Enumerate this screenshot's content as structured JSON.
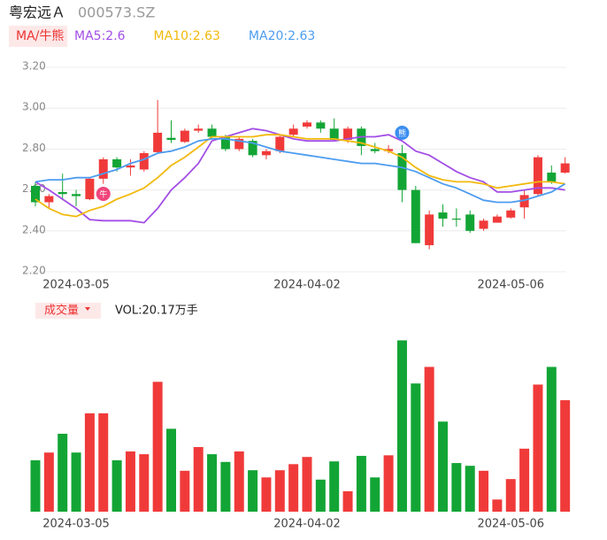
{
  "header": {
    "name": "粤宏远Ａ",
    "code": "000573.SZ",
    "ma_tag": "MA/牛熊"
  },
  "chart_data": [
    {
      "type": "candlestick",
      "categories": [
        null,
        null,
        null,
        "2024-03-05",
        null,
        null,
        null,
        null,
        null,
        null,
        null,
        null,
        null,
        null,
        null,
        null,
        null,
        null,
        null,
        null,
        "2024-04-02",
        null,
        null,
        null,
        null,
        null,
        null,
        null,
        null,
        null,
        null,
        null,
        null,
        null,
        null,
        "2024-05-06",
        null,
        null,
        null,
        null
      ],
      "open": [
        2.62,
        2.54,
        2.59,
        2.58,
        2.555,
        2.655,
        2.75,
        2.71,
        2.7,
        2.785,
        2.855,
        2.835,
        2.89,
        2.9,
        2.86,
        2.8,
        2.84,
        2.77,
        2.79,
        2.87,
        2.91,
        2.93,
        2.9,
        2.845,
        2.9,
        2.8,
        2.79,
        2.78,
        2.6,
        2.33,
        2.49,
        2.46,
        2.48,
        2.41,
        2.44,
        2.465,
        2.515,
        2.58,
        2.685,
        2.685
      ],
      "close": [
        2.54,
        2.57,
        2.58,
        2.57,
        2.655,
        2.75,
        2.71,
        2.72,
        2.78,
        2.88,
        2.845,
        2.89,
        2.9,
        2.86,
        2.8,
        2.85,
        2.77,
        2.79,
        2.86,
        2.9,
        2.93,
        2.9,
        2.845,
        2.9,
        2.815,
        2.79,
        2.8,
        2.6,
        2.34,
        2.48,
        2.46,
        2.455,
        2.4,
        2.45,
        2.47,
        2.5,
        2.575,
        2.76,
        2.64,
        2.73
      ],
      "high": [
        2.64,
        2.58,
        2.68,
        2.6,
        2.66,
        2.76,
        2.76,
        2.75,
        2.79,
        3.04,
        2.94,
        2.9,
        2.92,
        2.92,
        2.87,
        2.86,
        2.85,
        2.8,
        2.87,
        2.92,
        2.94,
        2.94,
        2.95,
        2.91,
        2.91,
        2.83,
        2.82,
        2.82,
        2.62,
        2.5,
        2.53,
        2.51,
        2.5,
        2.46,
        2.48,
        2.51,
        2.6,
        2.77,
        2.72,
        2.76
      ],
      "low": [
        2.52,
        2.51,
        2.55,
        2.52,
        2.55,
        2.63,
        2.69,
        2.67,
        2.69,
        2.78,
        2.83,
        2.83,
        2.88,
        2.85,
        2.79,
        2.79,
        2.76,
        2.75,
        2.78,
        2.86,
        2.9,
        2.88,
        2.84,
        2.83,
        2.77,
        2.78,
        2.78,
        2.54,
        2.34,
        2.31,
        2.42,
        2.42,
        2.39,
        2.4,
        2.44,
        2.46,
        2.46,
        2.57,
        2.63,
        2.68
      ],
      "up_color": "#f03a3a",
      "down_color": "#12a535",
      "series": [
        {
          "name": "MA5:2.6",
          "color": "#a24ee6",
          "values": [
            2.64,
            2.6,
            2.555,
            2.51,
            2.455,
            2.45,
            2.45,
            2.45,
            2.44,
            2.51,
            2.6,
            2.66,
            2.73,
            2.84,
            2.86,
            2.88,
            2.9,
            2.89,
            2.87,
            2.85,
            2.84,
            2.84,
            2.84,
            2.85,
            2.86,
            2.86,
            2.87,
            2.84,
            2.79,
            2.77,
            2.73,
            2.69,
            2.66,
            2.64,
            2.59,
            2.59,
            2.6,
            2.61,
            2.61,
            2.6
          ]
        },
        {
          "name": "MA10:2.63",
          "color": "#f2b90c",
          "values": [
            2.555,
            2.51,
            2.48,
            2.47,
            2.5,
            2.52,
            2.555,
            2.58,
            2.61,
            2.66,
            2.72,
            2.76,
            2.81,
            2.86,
            2.86,
            2.86,
            2.86,
            2.87,
            2.87,
            2.86,
            2.85,
            2.85,
            2.85,
            2.84,
            2.83,
            2.81,
            2.79,
            2.76,
            2.71,
            2.67,
            2.65,
            2.64,
            2.64,
            2.63,
            2.61,
            2.62,
            2.63,
            2.64,
            2.64,
            2.63
          ]
        },
        {
          "name": "MA20:2.63",
          "color": "#4d9cf0",
          "values": [
            2.64,
            2.65,
            2.65,
            2.66,
            2.66,
            2.68,
            2.7,
            2.73,
            2.75,
            2.78,
            2.79,
            2.81,
            2.84,
            2.85,
            2.85,
            2.84,
            2.83,
            2.81,
            2.79,
            2.78,
            2.77,
            2.76,
            2.75,
            2.74,
            2.73,
            2.73,
            2.72,
            2.71,
            2.69,
            2.66,
            2.63,
            2.61,
            2.58,
            2.55,
            2.54,
            2.54,
            2.55,
            2.57,
            2.59,
            2.63
          ]
        }
      ],
      "annotations": [
        {
          "index": 5,
          "text": "牛",
          "color": "#f0457a"
        },
        {
          "index": 27,
          "text": "熊",
          "color": "#3a8ef0"
        }
      ],
      "ylim": [
        2.2,
        3.2
      ],
      "yticks": [
        {
          "value": 2.2,
          "label": "2.20"
        },
        {
          "value": 2.4,
          "label": "2.40"
        },
        {
          "value": 2.6,
          "label": "2.60"
        },
        {
          "value": 2.8,
          "label": "2.80"
        },
        {
          "value": 3.0,
          "label": "3.00"
        },
        {
          "value": 3.2,
          "label": "3.20"
        }
      ],
      "grid": true
    },
    {
      "type": "bar",
      "title": "VOL:20.17万手",
      "tag": "成交量",
      "categories": [
        null,
        null,
        null,
        "2024-03-05",
        null,
        null,
        null,
        null,
        null,
        null,
        null,
        null,
        null,
        null,
        null,
        null,
        null,
        null,
        null,
        null,
        "2024-04-02",
        null,
        null,
        null,
        null,
        null,
        null,
        null,
        null,
        null,
        null,
        null,
        null,
        null,
        null,
        "2024-05-06",
        null,
        null,
        null,
        null
      ],
      "values": [
        9.3,
        10.7,
        14.1,
        10.7,
        17.8,
        17.8,
        9.3,
        10.9,
        10.4,
        23.5,
        15.0,
        7.4,
        11.7,
        10.4,
        9.0,
        10.9,
        7.5,
        6.2,
        7.5,
        8.6,
        9.9,
        5.8,
        9.1,
        3.7,
        10.1,
        6.2,
        10.2,
        31.0,
        23.2,
        26.2,
        16.3,
        8.8,
        8.3,
        7.4,
        2.2,
        5.9,
        11.4,
        23.0,
        26.2,
        20.17
      ],
      "ylim": [
        0,
        33
      ]
    }
  ]
}
